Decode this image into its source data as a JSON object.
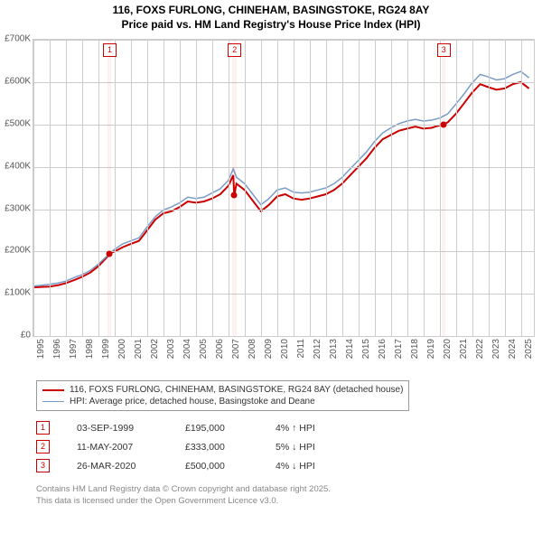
{
  "title": {
    "line1": "116, FOXS FURLONG, CHINEHAM, BASINGSTOKE, RG24 8AY",
    "line2": "Price paid vs. HM Land Registry's House Price Index (HPI)"
  },
  "chart": {
    "type": "line",
    "background_color": "#ffffff",
    "grid_color": "#cccccc",
    "plot_border_color": "#cccccc",
    "x_min": 1995,
    "x_max": 2025.8,
    "y_min": 0,
    "y_max": 700000,
    "y_ticks": [
      0,
      100000,
      200000,
      300000,
      400000,
      500000,
      600000,
      700000
    ],
    "y_tick_labels": [
      "£0",
      "£100K",
      "£200K",
      "£300K",
      "£400K",
      "£500K",
      "£600K",
      "£700K"
    ],
    "x_ticks": [
      1995,
      1996,
      1997,
      1998,
      1999,
      2000,
      2001,
      2002,
      2003,
      2004,
      2005,
      2006,
      2007,
      2008,
      2009,
      2010,
      2011,
      2012,
      2013,
      2014,
      2015,
      2016,
      2017,
      2018,
      2019,
      2020,
      2021,
      2022,
      2023,
      2024,
      2025
    ],
    "y_label_fontsize": 10,
    "x_label_fontsize": 10,
    "shade_color": "rgba(200,30,30,0.06)",
    "shades": [
      {
        "x": 1999.67,
        "w": 0.25
      },
      {
        "x": 2007.36,
        "w": 0.25
      },
      {
        "x": 2020.23,
        "w": 0.25
      }
    ],
    "sale_markers": [
      {
        "n": "1",
        "x": 1999.67,
        "price": 195000
      },
      {
        "n": "2",
        "x": 2007.36,
        "price": 333000
      },
      {
        "n": "3",
        "x": 2020.23,
        "price": 500000
      }
    ],
    "series": [
      {
        "name": "price_paid",
        "color": "#cc0000",
        "width": 2,
        "data": [
          [
            1995.0,
            115000
          ],
          [
            1995.5,
            116000
          ],
          [
            1996.0,
            117000
          ],
          [
            1996.5,
            120000
          ],
          [
            1997.0,
            125000
          ],
          [
            1997.5,
            132000
          ],
          [
            1998.0,
            140000
          ],
          [
            1998.5,
            150000
          ],
          [
            1999.0,
            165000
          ],
          [
            1999.5,
            185000
          ],
          [
            1999.67,
            195000
          ],
          [
            2000.0,
            200000
          ],
          [
            2000.5,
            210000
          ],
          [
            2001.0,
            218000
          ],
          [
            2001.5,
            225000
          ],
          [
            2002.0,
            250000
          ],
          [
            2002.5,
            275000
          ],
          [
            2003.0,
            290000
          ],
          [
            2003.5,
            295000
          ],
          [
            2004.0,
            305000
          ],
          [
            2004.5,
            318000
          ],
          [
            2005.0,
            315000
          ],
          [
            2005.5,
            318000
          ],
          [
            2006.0,
            325000
          ],
          [
            2006.5,
            335000
          ],
          [
            2007.0,
            355000
          ],
          [
            2007.3,
            380000
          ],
          [
            2007.36,
            333000
          ],
          [
            2007.5,
            360000
          ],
          [
            2008.0,
            345000
          ],
          [
            2008.5,
            320000
          ],
          [
            2009.0,
            295000
          ],
          [
            2009.5,
            310000
          ],
          [
            2010.0,
            330000
          ],
          [
            2010.5,
            335000
          ],
          [
            2011.0,
            325000
          ],
          [
            2011.5,
            322000
          ],
          [
            2012.0,
            325000
          ],
          [
            2012.5,
            330000
          ],
          [
            2013.0,
            335000
          ],
          [
            2013.5,
            345000
          ],
          [
            2014.0,
            360000
          ],
          [
            2014.5,
            380000
          ],
          [
            2015.0,
            400000
          ],
          [
            2015.5,
            420000
          ],
          [
            2016.0,
            445000
          ],
          [
            2016.5,
            465000
          ],
          [
            2017.0,
            475000
          ],
          [
            2017.5,
            485000
          ],
          [
            2018.0,
            490000
          ],
          [
            2018.5,
            495000
          ],
          [
            2019.0,
            490000
          ],
          [
            2019.5,
            492000
          ],
          [
            2020.0,
            498000
          ],
          [
            2020.23,
            500000
          ],
          [
            2020.5,
            505000
          ],
          [
            2021.0,
            525000
          ],
          [
            2021.5,
            550000
          ],
          [
            2022.0,
            575000
          ],
          [
            2022.5,
            595000
          ],
          [
            2023.0,
            588000
          ],
          [
            2023.5,
            582000
          ],
          [
            2024.0,
            585000
          ],
          [
            2024.5,
            595000
          ],
          [
            2025.0,
            600000
          ],
          [
            2025.5,
            585000
          ]
        ]
      },
      {
        "name": "hpi",
        "color": "#7a9cc6",
        "width": 1.5,
        "data": [
          [
            1995.0,
            118000
          ],
          [
            1995.5,
            120000
          ],
          [
            1996.0,
            122000
          ],
          [
            1996.5,
            125000
          ],
          [
            1997.0,
            130000
          ],
          [
            1997.5,
            138000
          ],
          [
            1998.0,
            145000
          ],
          [
            1998.5,
            155000
          ],
          [
            1999.0,
            170000
          ],
          [
            1999.5,
            188000
          ],
          [
            2000.0,
            205000
          ],
          [
            2000.5,
            218000
          ],
          [
            2001.0,
            225000
          ],
          [
            2001.5,
            232000
          ],
          [
            2002.0,
            258000
          ],
          [
            2002.5,
            282000
          ],
          [
            2003.0,
            298000
          ],
          [
            2003.5,
            305000
          ],
          [
            2004.0,
            315000
          ],
          [
            2004.5,
            328000
          ],
          [
            2005.0,
            325000
          ],
          [
            2005.5,
            328000
          ],
          [
            2006.0,
            338000
          ],
          [
            2006.5,
            348000
          ],
          [
            2007.0,
            368000
          ],
          [
            2007.3,
            395000
          ],
          [
            2007.5,
            375000
          ],
          [
            2008.0,
            360000
          ],
          [
            2008.5,
            335000
          ],
          [
            2009.0,
            310000
          ],
          [
            2009.5,
            325000
          ],
          [
            2010.0,
            345000
          ],
          [
            2010.5,
            350000
          ],
          [
            2011.0,
            340000
          ],
          [
            2011.5,
            338000
          ],
          [
            2012.0,
            340000
          ],
          [
            2012.5,
            345000
          ],
          [
            2013.0,
            350000
          ],
          [
            2013.5,
            360000
          ],
          [
            2014.0,
            375000
          ],
          [
            2014.5,
            395000
          ],
          [
            2015.0,
            415000
          ],
          [
            2015.5,
            435000
          ],
          [
            2016.0,
            460000
          ],
          [
            2016.5,
            480000
          ],
          [
            2017.0,
            492000
          ],
          [
            2017.5,
            502000
          ],
          [
            2018.0,
            508000
          ],
          [
            2018.5,
            512000
          ],
          [
            2019.0,
            508000
          ],
          [
            2019.5,
            510000
          ],
          [
            2020.0,
            515000
          ],
          [
            2020.5,
            525000
          ],
          [
            2021.0,
            548000
          ],
          [
            2021.5,
            572000
          ],
          [
            2022.0,
            598000
          ],
          [
            2022.5,
            618000
          ],
          [
            2023.0,
            612000
          ],
          [
            2023.5,
            605000
          ],
          [
            2024.0,
            608000
          ],
          [
            2024.5,
            618000
          ],
          [
            2025.0,
            625000
          ],
          [
            2025.5,
            610000
          ]
        ]
      }
    ]
  },
  "legend": {
    "items": [
      {
        "color": "#cc0000",
        "width": 2,
        "label": "116, FOXS FURLONG, CHINEHAM, BASINGSTOKE, RG24 8AY (detached house)"
      },
      {
        "color": "#7a9cc6",
        "width": 1.5,
        "label": "HPI: Average price, detached house, Basingstoke and Deane"
      }
    ]
  },
  "sales": [
    {
      "n": "1",
      "date": "03-SEP-1999",
      "price": "£195,000",
      "hpi": "4% ↑ HPI"
    },
    {
      "n": "2",
      "date": "11-MAY-2007",
      "price": "£333,000",
      "hpi": "5% ↓ HPI"
    },
    {
      "n": "3",
      "date": "26-MAR-2020",
      "price": "£500,000",
      "hpi": "4% ↓ HPI"
    }
  ],
  "footer": {
    "line1": "Contains HM Land Registry data © Crown copyright and database right 2025.",
    "line2": "This data is licensed under the Open Government Licence v3.0."
  }
}
